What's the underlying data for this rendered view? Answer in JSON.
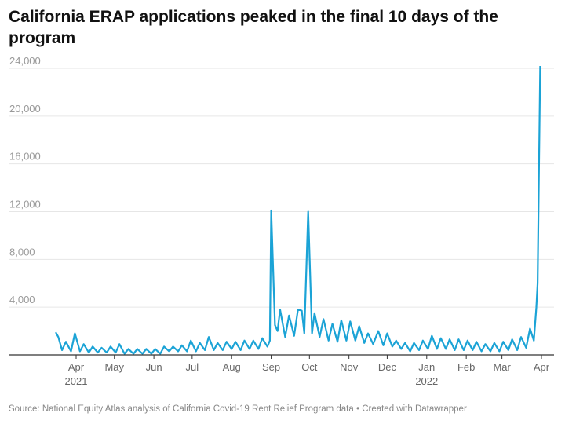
{
  "chart_data": {
    "type": "line",
    "title": "California ERAP applications peaked in the final 10 days of the program",
    "xlabel": "",
    "ylabel": "",
    "ylim": [
      0,
      24000
    ],
    "yticks": [
      4000,
      8000,
      12000,
      16000,
      20000,
      24000
    ],
    "ytick_labels": [
      "4,000",
      "8,000",
      "12,000",
      "16,000",
      "20,000",
      "24,000"
    ],
    "xlim": [
      "2021-03-10",
      "2022-04-08"
    ],
    "xticks": [
      {
        "date": "2021-04-01",
        "label": "Apr",
        "sub": "2021"
      },
      {
        "date": "2021-05-01",
        "label": "May",
        "sub": ""
      },
      {
        "date": "2021-06-01",
        "label": "Jun",
        "sub": ""
      },
      {
        "date": "2021-07-01",
        "label": "Jul",
        "sub": ""
      },
      {
        "date": "2021-08-01",
        "label": "Aug",
        "sub": ""
      },
      {
        "date": "2021-09-01",
        "label": "Sep",
        "sub": ""
      },
      {
        "date": "2021-10-01",
        "label": "Oct",
        "sub": ""
      },
      {
        "date": "2021-11-01",
        "label": "Nov",
        "sub": ""
      },
      {
        "date": "2021-12-01",
        "label": "Dec",
        "sub": ""
      },
      {
        "date": "2022-01-01",
        "label": "Jan",
        "sub": "2022"
      },
      {
        "date": "2022-02-01",
        "label": "Feb",
        "sub": ""
      },
      {
        "date": "2022-03-01",
        "label": "Mar",
        "sub": ""
      },
      {
        "date": "2022-04-01",
        "label": "Apr",
        "sub": ""
      }
    ],
    "grid": true,
    "line_color": "#1ba3d6",
    "series": [
      {
        "x": [
          "2021-03-16",
          "2021-03-18",
          "2021-03-21",
          "2021-03-24",
          "2021-03-28",
          "2021-03-31",
          "2021-04-04",
          "2021-04-07",
          "2021-04-11",
          "2021-04-14",
          "2021-04-18",
          "2021-04-21",
          "2021-04-25",
          "2021-04-28",
          "2021-05-02",
          "2021-05-05",
          "2021-05-09",
          "2021-05-12",
          "2021-05-16",
          "2021-05-19",
          "2021-05-23",
          "2021-05-26",
          "2021-05-30",
          "2021-06-02",
          "2021-06-06",
          "2021-06-09",
          "2021-06-13",
          "2021-06-16",
          "2021-06-20",
          "2021-06-23",
          "2021-06-27",
          "2021-06-30",
          "2021-07-04",
          "2021-07-07",
          "2021-07-11",
          "2021-07-14",
          "2021-07-18",
          "2021-07-21",
          "2021-07-25",
          "2021-07-28",
          "2021-08-01",
          "2021-08-04",
          "2021-08-08",
          "2021-08-11",
          "2021-08-15",
          "2021-08-18",
          "2021-08-22",
          "2021-08-25",
          "2021-08-29",
          "2021-08-31",
          "2021-09-01",
          "2021-09-04",
          "2021-09-06",
          "2021-09-08",
          "2021-09-12",
          "2021-09-15",
          "2021-09-19",
          "2021-09-22",
          "2021-09-25",
          "2021-09-27",
          "2021-09-30",
          "2021-10-03",
          "2021-10-05",
          "2021-10-09",
          "2021-10-12",
          "2021-10-16",
          "2021-10-19",
          "2021-10-23",
          "2021-10-26",
          "2021-10-30",
          "2021-11-02",
          "2021-11-06",
          "2021-11-09",
          "2021-11-13",
          "2021-11-16",
          "2021-11-20",
          "2021-11-24",
          "2021-11-28",
          "2021-12-01",
          "2021-12-05",
          "2021-12-08",
          "2021-12-12",
          "2021-12-15",
          "2021-12-19",
          "2021-12-22",
          "2021-12-26",
          "2021-12-29",
          "2022-01-02",
          "2022-01-05",
          "2022-01-09",
          "2022-01-12",
          "2022-01-16",
          "2022-01-19",
          "2022-01-23",
          "2022-01-26",
          "2022-01-30",
          "2022-02-02",
          "2022-02-06",
          "2022-02-09",
          "2022-02-13",
          "2022-02-16",
          "2022-02-20",
          "2022-02-23",
          "2022-02-27",
          "2022-03-02",
          "2022-03-06",
          "2022-03-09",
          "2022-03-13",
          "2022-03-16",
          "2022-03-20",
          "2022-03-23",
          "2022-03-26",
          "2022-03-28",
          "2022-03-29",
          "2022-03-31"
        ],
        "y": [
          1900,
          1500,
          400,
          1100,
          300,
          1800,
          300,
          900,
          200,
          700,
          200,
          600,
          200,
          700,
          200,
          900,
          100,
          500,
          100,
          500,
          100,
          500,
          100,
          500,
          100,
          700,
          300,
          700,
          300,
          800,
          300,
          1200,
          300,
          1000,
          400,
          1500,
          400,
          1000,
          400,
          1100,
          500,
          1100,
          400,
          1200,
          500,
          1200,
          500,
          1400,
          700,
          1200,
          12100,
          2500,
          2000,
          3800,
          1500,
          3300,
          1600,
          3800,
          3700,
          1800,
          12000,
          1800,
          3500,
          1500,
          3000,
          1200,
          2600,
          1100,
          2900,
          1200,
          2800,
          1200,
          2400,
          1000,
          1800,
          900,
          2000,
          800,
          1800,
          700,
          1200,
          500,
          1000,
          300,
          1000,
          400,
          1200,
          500,
          1600,
          500,
          1400,
          500,
          1300,
          400,
          1300,
          400,
          1200,
          400,
          1100,
          300,
          900,
          300,
          1000,
          300,
          1100,
          400,
          1300,
          400,
          1500,
          600,
          2200,
          1200,
          4000,
          6000,
          24200
        ]
      }
    ]
  },
  "source": "Source: National Equity Atlas analysis of California Covid-19 Rent Relief Program data • Created with Datawrapper"
}
